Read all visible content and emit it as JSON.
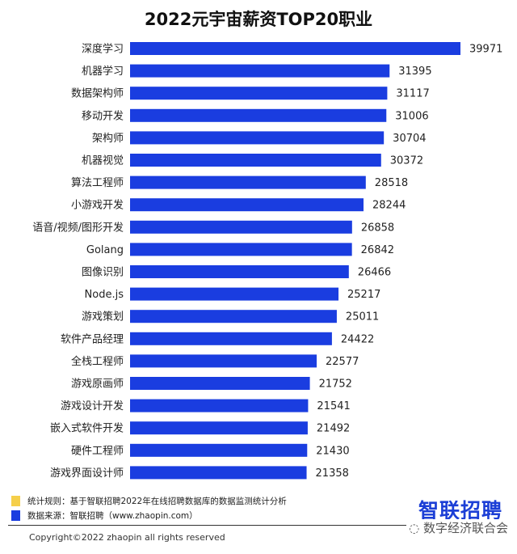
{
  "chart_data": {
    "type": "bar",
    "orientation": "horizontal",
    "title": "2022元宇宙薪资TOP20职业",
    "xlabel": "",
    "ylabel": "",
    "xlim": [
      0,
      40000
    ],
    "grid": false,
    "color": "#1a3de0",
    "categories": [
      "深度学习",
      "机器学习",
      "数据架构师",
      "移动开发",
      "架构师",
      "机器视觉",
      "算法工程师",
      "小游戏开发",
      "语音/视频/图形开发",
      "Golang",
      "图像识别",
      "Node.js",
      "游戏策划",
      "软件产品经理",
      "全栈工程师",
      "游戏原画师",
      "游戏设计开发",
      "嵌入式软件开发",
      "硬件工程师",
      "游戏界面设计师"
    ],
    "values": [
      39971,
      31395,
      31117,
      31006,
      30704,
      30372,
      28518,
      28244,
      26858,
      26842,
      26466,
      25217,
      25011,
      24422,
      22577,
      21752,
      21541,
      21492,
      21430,
      21358
    ]
  },
  "legend": [
    {
      "text": "统计规则：基于智联招聘2022年在线招聘数据库的数据监测统计分析",
      "color": "#f5cf4a"
    },
    {
      "text": "数据来源：智联招聘（www.zhaopin.com）",
      "color": "#1a3de0"
    }
  ],
  "logo": "智联招聘",
  "copyright": "Copyright©2022 zhaopin all rights reserved",
  "watermark": "数字经济联合会"
}
